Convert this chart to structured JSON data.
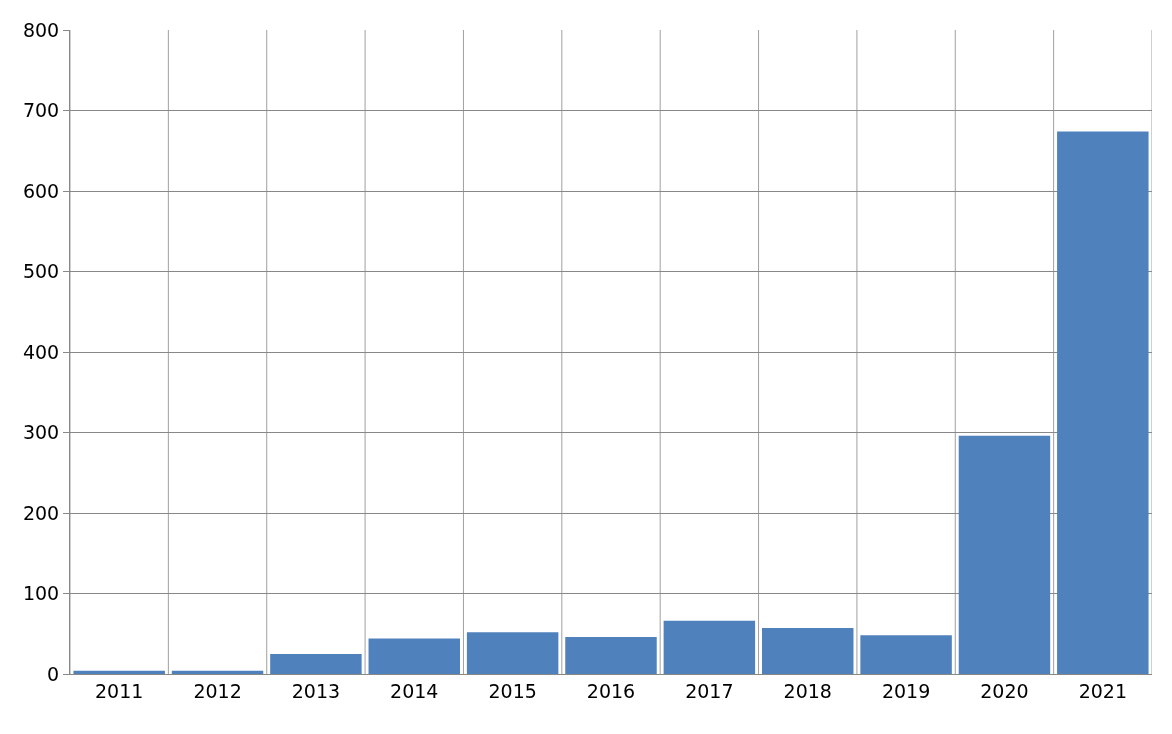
{
  "chart_data": {
    "type": "bar",
    "categories": [
      "2011",
      "2012",
      "2013",
      "2014",
      "2015",
      "2016",
      "2017",
      "2018",
      "2019",
      "2020",
      "2021"
    ],
    "values": [
      4,
      4,
      25,
      44,
      52,
      46,
      66,
      57,
      48,
      296,
      674
    ],
    "color": "#4f81bd",
    "ylim": [
      0,
      800
    ],
    "yticks": [
      0,
      100,
      200,
      300,
      400,
      500,
      600,
      700,
      800
    ],
    "grid": true
  }
}
